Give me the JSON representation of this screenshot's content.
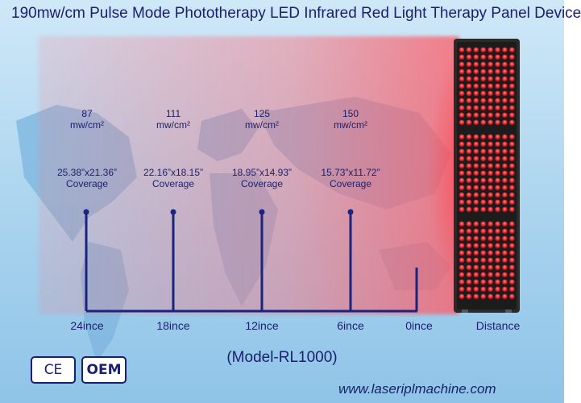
{
  "title": "190mw/cm Pulse Mode Phototherapy LED Infrared Red Light Therapy Panel Device",
  "points": [
    {
      "dose_value": "87",
      "dose_unit": "mw/cm²",
      "size": "25.38”x21.36”",
      "coverage": "Coverage"
    },
    {
      "dose_value": "111",
      "dose_unit": "mw/cm²",
      "size": "22.16”x18.15”",
      "coverage": "Coverage"
    },
    {
      "dose_value": "125",
      "dose_unit": "mw/cm²",
      "size": "18.95”x14.93”",
      "coverage": "Coverage"
    },
    {
      "dose_value": "150",
      "dose_unit": "mw/cm²",
      "size": "15.73”x11.72”",
      "coverage": "Coverage"
    }
  ],
  "distance_labels": [
    "24ince",
    "18ince",
    "12ince",
    "6ince",
    "0ince"
  ],
  "distance_title": "Distance",
  "model": "(Model-RL1000)",
  "badges": {
    "ce": "CE",
    "oem": "OEM"
  },
  "website": "www.laseriplmachine.com",
  "colors": {
    "text": "#1a1f6e",
    "axis": "#1a237e",
    "beam": "#ff6b78",
    "led": "#e0202a",
    "panel": "#2a2a2a"
  }
}
